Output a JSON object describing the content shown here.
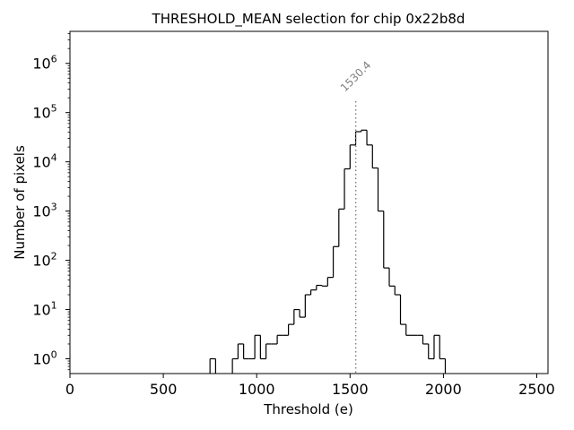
{
  "chart_data": {
    "type": "histogram",
    "title": "THRESHOLD_MEAN selection for chip 0x22b8d",
    "xlabel": "Threshold (e)",
    "ylabel": "Number of pixels",
    "xlim": [
      0,
      2560
    ],
    "ylim_log10": [
      -0.3,
      6.65
    ],
    "yscale": "log",
    "x_ticks": [
      {
        "value": 0,
        "label": "0"
      },
      {
        "value": 500,
        "label": "500"
      },
      {
        "value": 1000,
        "label": "1000"
      },
      {
        "value": 1500,
        "label": "1500"
      },
      {
        "value": 2000,
        "label": "2000"
      },
      {
        "value": 2500,
        "label": "2500"
      }
    ],
    "y_ticks": [
      {
        "exp": 0,
        "base": "10",
        "sup": "0"
      },
      {
        "exp": 1,
        "base": "10",
        "sup": "1"
      },
      {
        "exp": 2,
        "base": "10",
        "sup": "2"
      },
      {
        "exp": 3,
        "base": "10",
        "sup": "3"
      },
      {
        "exp": 4,
        "base": "10",
        "sup": "4"
      },
      {
        "exp": 5,
        "base": "10",
        "sup": "5"
      },
      {
        "exp": 6,
        "base": "10",
        "sup": "6"
      }
    ],
    "bin_width": 30,
    "bins": [
      {
        "x": 750,
        "count": 1
      },
      {
        "x": 870,
        "count": 1
      },
      {
        "x": 900,
        "count": 2
      },
      {
        "x": 930,
        "count": 1
      },
      {
        "x": 960,
        "count": 1
      },
      {
        "x": 990,
        "count": 3
      },
      {
        "x": 1020,
        "count": 1
      },
      {
        "x": 1050,
        "count": 2
      },
      {
        "x": 1080,
        "count": 2
      },
      {
        "x": 1110,
        "count": 3
      },
      {
        "x": 1140,
        "count": 3
      },
      {
        "x": 1170,
        "count": 5
      },
      {
        "x": 1200,
        "count": 10
      },
      {
        "x": 1230,
        "count": 7
      },
      {
        "x": 1260,
        "count": 20
      },
      {
        "x": 1290,
        "count": 25
      },
      {
        "x": 1320,
        "count": 31
      },
      {
        "x": 1350,
        "count": 30
      },
      {
        "x": 1380,
        "count": 45
      },
      {
        "x": 1410,
        "count": 190
      },
      {
        "x": 1440,
        "count": 1100
      },
      {
        "x": 1470,
        "count": 7200
      },
      {
        "x": 1500,
        "count": 22000
      },
      {
        "x": 1530,
        "count": 41000
      },
      {
        "x": 1560,
        "count": 44000
      },
      {
        "x": 1590,
        "count": 22000
      },
      {
        "x": 1620,
        "count": 7500
      },
      {
        "x": 1650,
        "count": 1000
      },
      {
        "x": 1680,
        "count": 70
      },
      {
        "x": 1710,
        "count": 30
      },
      {
        "x": 1740,
        "count": 20
      },
      {
        "x": 1770,
        "count": 5
      },
      {
        "x": 1800,
        "count": 3
      },
      {
        "x": 1830,
        "count": 3
      },
      {
        "x": 1860,
        "count": 3
      },
      {
        "x": 1890,
        "count": 2
      },
      {
        "x": 1920,
        "count": 1
      },
      {
        "x": 1950,
        "count": 3
      },
      {
        "x": 1980,
        "count": 1
      }
    ],
    "marker": {
      "value": 1530.4,
      "label": "1530.4",
      "style": "dotted",
      "color": "#808080"
    }
  }
}
